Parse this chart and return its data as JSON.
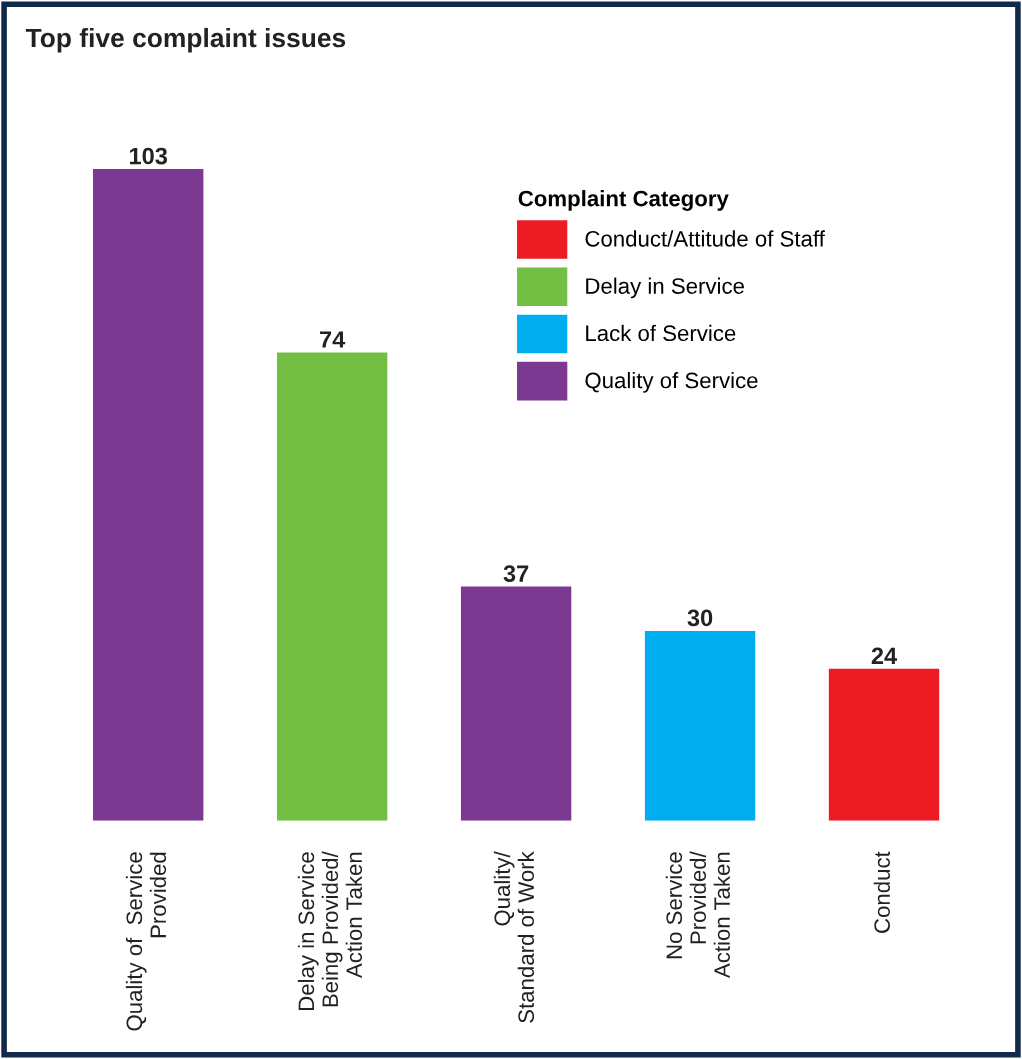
{
  "chart_data": {
    "type": "bar",
    "title": "Top five complaint issues",
    "legend_title": "Complaint Category",
    "categories": [
      "Quality of  Service\nProvided",
      "Delay in Service\nBeing Provided/\nAction Taken",
      "Quality/\nStandard of Work",
      "No Service\nProvided/\nAction Taken",
      "Conduct"
    ],
    "stacked": true,
    "data_labels": true,
    "legend": "top right",
    "grid": false,
    "series": [
      {
        "name": "Conduct/Attitude of Staff",
        "color": "#ed1c24",
        "values": [
          null,
          null,
          null,
          null,
          24
        ]
      },
      {
        "name": "Delay in Service",
        "color": "#72bf44",
        "values": [
          null,
          74,
          null,
          null,
          null
        ]
      },
      {
        "name": "Lack of Service",
        "color": "#00aeef",
        "values": [
          null,
          null,
          null,
          30,
          null
        ]
      },
      {
        "name": "Quality of Service",
        "color": "#7b3992",
        "values": [
          103,
          null,
          37,
          null,
          null
        ]
      }
    ]
  }
}
